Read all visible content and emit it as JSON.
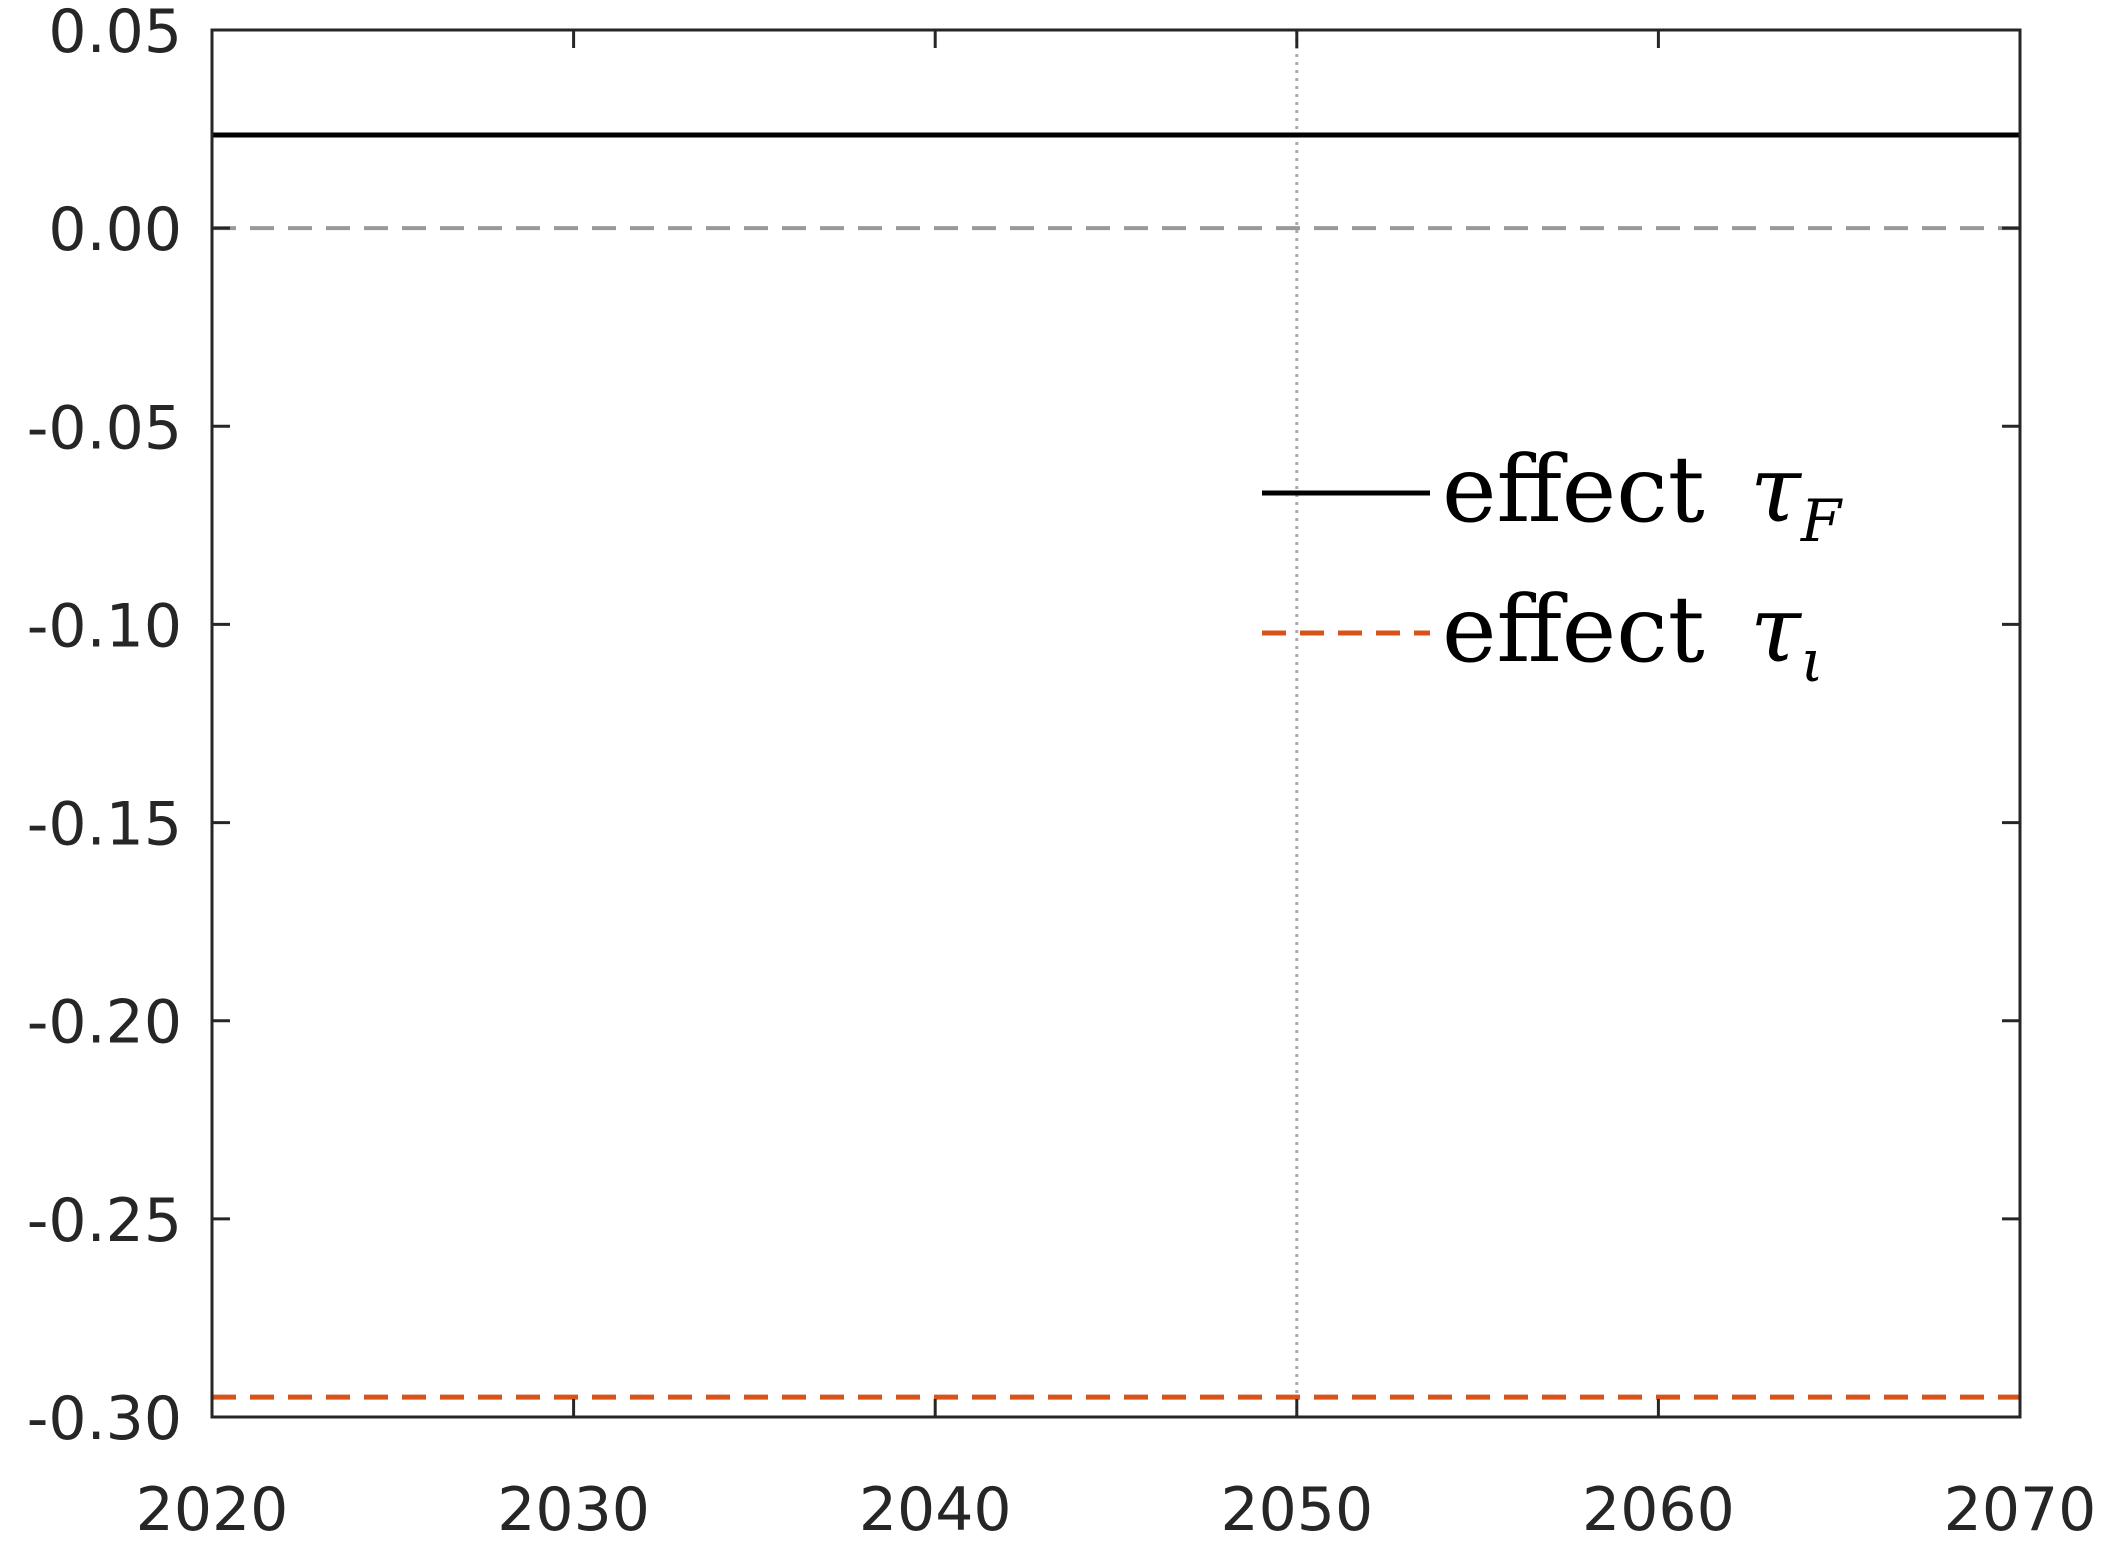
{
  "chart_data": {
    "type": "line",
    "title": "",
    "xlabel": "",
    "ylabel": "",
    "xlim": [
      2020,
      2070
    ],
    "ylim": [
      -0.3,
      0.05
    ],
    "x_ticks": [
      "2020",
      "2030",
      "2040",
      "2050",
      "2060",
      "2070"
    ],
    "y_ticks": [
      "0.05",
      "0.00",
      "-0.05",
      "-0.10",
      "-0.15",
      "-0.20",
      "-0.25",
      "-0.30"
    ],
    "grid": false,
    "series": [
      {
        "name": "effect τF",
        "x": [
          2020,
          2070
        ],
        "y": [
          0.0235,
          0.0235
        ],
        "color": "#000000",
        "style": "solid"
      },
      {
        "name": "effect τι",
        "x": [
          2020,
          2070
        ],
        "y": [
          -0.295,
          -0.295
        ],
        "color": "#D95319",
        "style": "dashed"
      }
    ],
    "reference_lines": [
      {
        "axis": "y",
        "value": 0.0,
        "color": "#999999",
        "style": "dashed"
      },
      {
        "axis": "x",
        "value": 2050,
        "color": "#AAAAAA",
        "style": "dotted"
      }
    ],
    "legend": {
      "placement": "right",
      "entries": [
        {
          "prefix": "effect ",
          "symbol": "τ",
          "subscript": "F"
        },
        {
          "prefix": "effect ",
          "symbol": "τ",
          "subscript": "ι"
        }
      ]
    }
  }
}
